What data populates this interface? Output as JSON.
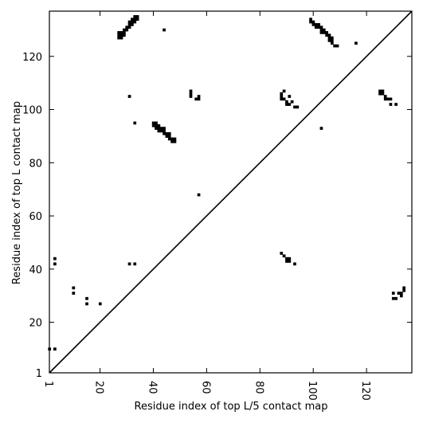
{
  "chart_data": {
    "type": "heatmap",
    "title": "",
    "xlabel": "Residue index of top L/5 contact map",
    "ylabel": "Residue index of top L contact map",
    "xlim": [
      1,
      137
    ],
    "ylim": [
      1,
      137
    ],
    "x_ticks": [
      1,
      20,
      40,
      60,
      80,
      100,
      120
    ],
    "y_ticks": [
      1,
      20,
      40,
      60,
      80,
      100,
      120
    ],
    "x_tick_labels": [
      "1",
      "20",
      "40",
      "60",
      "80",
      "100",
      "120"
    ],
    "y_tick_labels": [
      "1",
      "20",
      "40",
      "60",
      "80",
      "100",
      "120"
    ],
    "x_tick_label_rotation": "vertical",
    "diagonal_line": true,
    "grid": false,
    "cell_color": "#000000",
    "background_color": "#ffffff",
    "contacts_upper_left": [
      [
        27,
        127
      ],
      [
        27,
        128
      ],
      [
        27,
        129
      ],
      [
        28,
        127
      ],
      [
        28,
        128
      ],
      [
        28,
        129
      ],
      [
        29,
        128
      ],
      [
        29,
        129
      ],
      [
        29,
        130
      ],
      [
        30,
        130
      ],
      [
        30,
        131
      ],
      [
        31,
        131
      ],
      [
        31,
        132
      ],
      [
        31,
        133
      ],
      [
        32,
        132
      ],
      [
        32,
        133
      ],
      [
        32,
        134
      ],
      [
        33,
        133
      ],
      [
        33,
        134
      ],
      [
        33,
        135
      ],
      [
        34,
        134
      ],
      [
        34,
        135
      ],
      [
        44,
        130
      ],
      [
        31,
        105
      ],
      [
        33,
        95
      ],
      [
        40,
        94
      ],
      [
        40,
        95
      ],
      [
        41,
        93
      ],
      [
        41,
        94
      ],
      [
        41,
        95
      ],
      [
        42,
        92
      ],
      [
        42,
        93
      ],
      [
        42,
        94
      ],
      [
        43,
        92
      ],
      [
        43,
        93
      ],
      [
        44,
        91
      ],
      [
        44,
        92
      ],
      [
        44,
        93
      ],
      [
        45,
        90
      ],
      [
        45,
        91
      ],
      [
        46,
        89
      ],
      [
        46,
        90
      ],
      [
        46,
        91
      ],
      [
        47,
        88
      ],
      [
        47,
        89
      ],
      [
        48,
        88
      ],
      [
        48,
        89
      ],
      [
        54,
        105
      ],
      [
        54,
        106
      ],
      [
        54,
        107
      ],
      [
        56,
        104
      ],
      [
        57,
        104
      ],
      [
        57,
        105
      ],
      [
        57,
        68
      ],
      [
        88,
        104
      ],
      [
        88,
        105
      ],
      [
        88,
        106
      ],
      [
        89,
        104
      ],
      [
        89,
        107
      ],
      [
        90,
        102
      ],
      [
        90,
        103
      ],
      [
        91,
        102
      ],
      [
        91,
        105
      ],
      [
        92,
        103
      ],
      [
        93,
        101
      ],
      [
        94,
        101
      ],
      [
        99,
        133
      ],
      [
        99,
        134
      ],
      [
        100,
        132
      ],
      [
        100,
        133
      ],
      [
        101,
        131
      ],
      [
        101,
        132
      ],
      [
        102,
        131
      ],
      [
        102,
        132
      ],
      [
        103,
        129
      ],
      [
        103,
        130
      ],
      [
        103,
        131
      ],
      [
        104,
        129
      ],
      [
        104,
        130
      ],
      [
        105,
        128
      ],
      [
        105,
        129
      ],
      [
        106,
        126
      ],
      [
        106,
        127
      ],
      [
        106,
        128
      ],
      [
        107,
        125
      ],
      [
        107,
        126
      ],
      [
        107,
        127
      ],
      [
        108,
        124
      ],
      [
        109,
        124
      ],
      [
        103,
        93
      ],
      [
        116,
        125
      ],
      [
        125,
        106
      ],
      [
        125,
        107
      ],
      [
        126,
        106
      ],
      [
        126,
        107
      ],
      [
        127,
        104
      ],
      [
        127,
        105
      ],
      [
        128,
        104
      ],
      [
        129,
        102
      ],
      [
        129,
        104
      ],
      [
        131,
        102
      ]
    ],
    "contacts_lower_right": [
      [
        1,
        10
      ],
      [
        3,
        10
      ],
      [
        3,
        42
      ],
      [
        3,
        44
      ],
      [
        10,
        31
      ],
      [
        10,
        33
      ],
      [
        15,
        27
      ],
      [
        15,
        29
      ],
      [
        20,
        27
      ],
      [
        31,
        42
      ],
      [
        33,
        42
      ],
      [
        88,
        46
      ],
      [
        89,
        45
      ],
      [
        90,
        43
      ],
      [
        90,
        44
      ],
      [
        91,
        43
      ],
      [
        91,
        44
      ],
      [
        93,
        42
      ],
      [
        130,
        29
      ],
      [
        130,
        31
      ],
      [
        131,
        29
      ],
      [
        132,
        31
      ],
      [
        133,
        30
      ],
      [
        133,
        31
      ],
      [
        134,
        32
      ],
      [
        134,
        33
      ]
    ]
  }
}
